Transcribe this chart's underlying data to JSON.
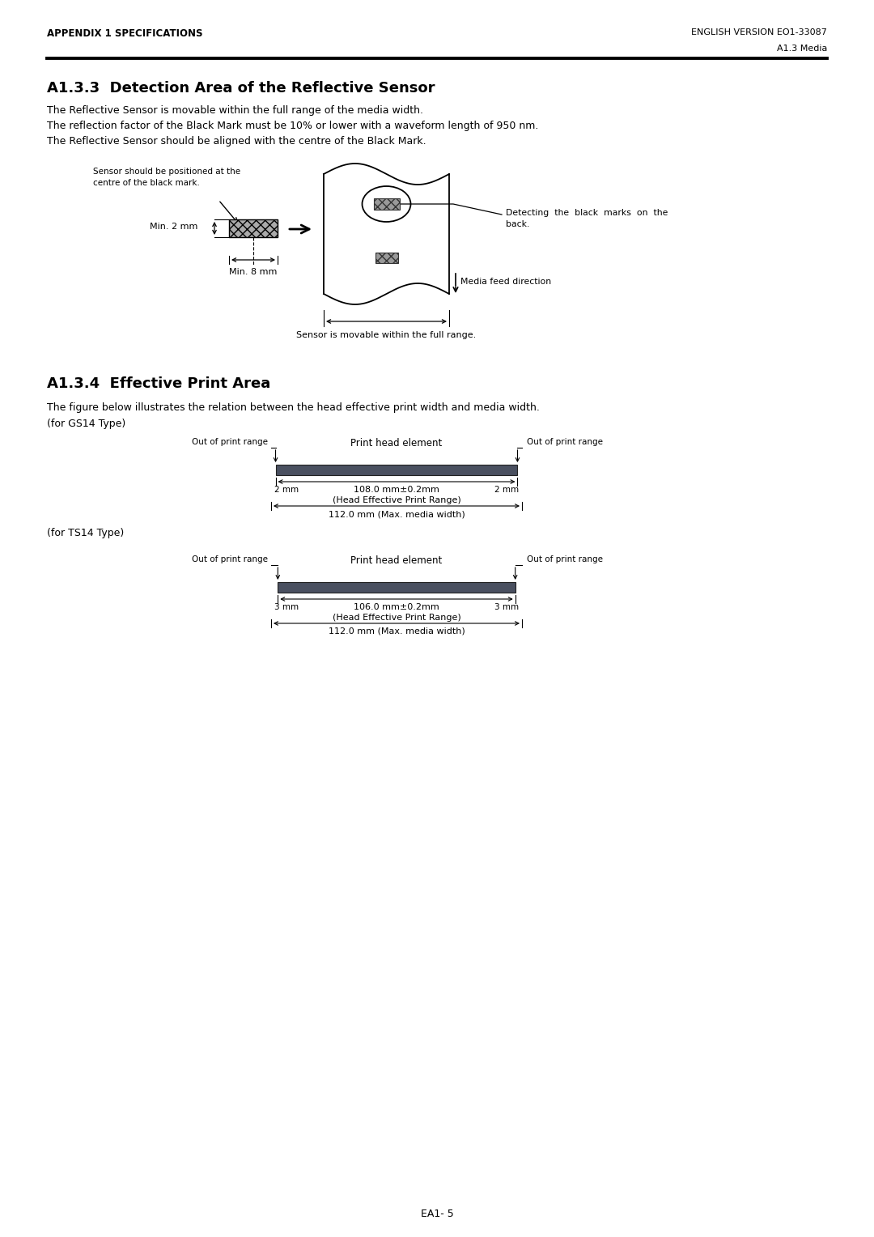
{
  "header_left": "APPENDIX 1 SPECIFICATIONS",
  "header_right": "ENGLISH VERSION EO1-33087",
  "subheader_right": "A1.3 Media",
  "section1_title": "A1.3.3  Detection Area of the Reflective Sensor",
  "section1_text": [
    "The Reflective Sensor is movable within the full range of the media width.",
    "The reflection factor of the Black Mark must be 10% or lower with a waveform length of 950 nm.",
    "The Reflective Sensor should be aligned with the centre of the Black Mark."
  ],
  "section2_title": "A1.3.4  Effective Print Area",
  "section2_text1": "The figure below illustrates the relation between the head effective print width and media width.",
  "section2_text2": "(for GS14 Type)",
  "section2_text3": "(for TS14 Type)",
  "gs14_label1": "108.0 mm±0.2mm",
  "gs14_label2": "(Head Effective Print Range)",
  "gs14_label3": "112.0 mm (Max. media width)",
  "gs14_left_mm": "2 mm",
  "gs14_right_mm": "2 mm",
  "ts14_label1": "106.0 mm±0.2mm",
  "ts14_label2": "(Head Effective Print Range)",
  "ts14_label3": "112.0 mm (Max. media width)",
  "ts14_left_mm": "3 mm",
  "ts14_right_mm": "3 mm",
  "print_head_label": "Print head element",
  "out_of_range_left": "Out of print range",
  "out_of_range_right": "Out of print range",
  "sensor_note1": "Sensor should be positioned at the",
  "sensor_note2": "centre of the black mark.",
  "min2mm": "Min. 2 mm",
  "min8mm": "Min. 8 mm",
  "detecting_text": "Detecting  the  black  marks  on  the\nback.",
  "media_feed": "Media feed direction",
  "sensor_movable": "Sensor is movable within the full range.",
  "footer": "EA1- 5",
  "bar_color": "#4a5060",
  "line_color": "#000000",
  "bg_color": "#ffffff"
}
